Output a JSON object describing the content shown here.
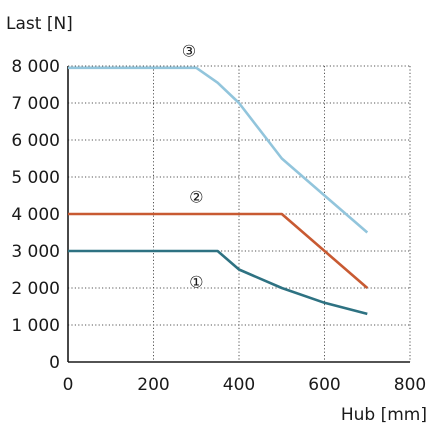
{
  "chart_data": {
    "type": "line",
    "xlabel": "Hub [mm]",
    "ylabel": "Last [N]",
    "xlim": [
      0,
      800
    ],
    "ylim": [
      0,
      8000
    ],
    "x_ticks": [
      {
        "value": 0,
        "label": "0"
      },
      {
        "value": 200,
        "label": "200"
      },
      {
        "value": 400,
        "label": "400"
      },
      {
        "value": 600,
        "label": "600"
      },
      {
        "value": 800,
        "label": "800"
      }
    ],
    "y_ticks": [
      {
        "value": 0,
        "label": "0"
      },
      {
        "value": 1000,
        "label": "1 000"
      },
      {
        "value": 2000,
        "label": "2 000"
      },
      {
        "value": 3000,
        "label": "3 000"
      },
      {
        "value": 4000,
        "label": "4 000"
      },
      {
        "value": 5000,
        "label": "5 000"
      },
      {
        "value": 6000,
        "label": "6 000"
      },
      {
        "value": 7000,
        "label": "7 000"
      },
      {
        "value": 8000,
        "label": "8 000"
      }
    ],
    "grid": "dotted",
    "series": [
      {
        "marker": "①",
        "color": "#2e7282",
        "marker_at": {
          "x": 300,
          "y": 2200
        },
        "points": [
          [
            0,
            3000
          ],
          [
            350,
            3000
          ],
          [
            400,
            2500
          ],
          [
            500,
            2000
          ],
          [
            600,
            1600
          ],
          [
            700,
            1300
          ]
        ]
      },
      {
        "marker": "②",
        "color": "#c85a32",
        "marker_at": {
          "x": 300,
          "y": 4500
        },
        "points": [
          [
            0,
            4000
          ],
          [
            500,
            4000
          ],
          [
            700,
            2000
          ]
        ]
      },
      {
        "marker": "③",
        "color": "#92c5dc",
        "marker_at": {
          "x": 283,
          "y": 8450
        },
        "points": [
          [
            0,
            7950
          ],
          [
            300,
            7950
          ],
          [
            350,
            7550
          ],
          [
            400,
            7000
          ],
          [
            500,
            5500
          ],
          [
            600,
            4500
          ],
          [
            700,
            3500
          ]
        ]
      }
    ]
  }
}
